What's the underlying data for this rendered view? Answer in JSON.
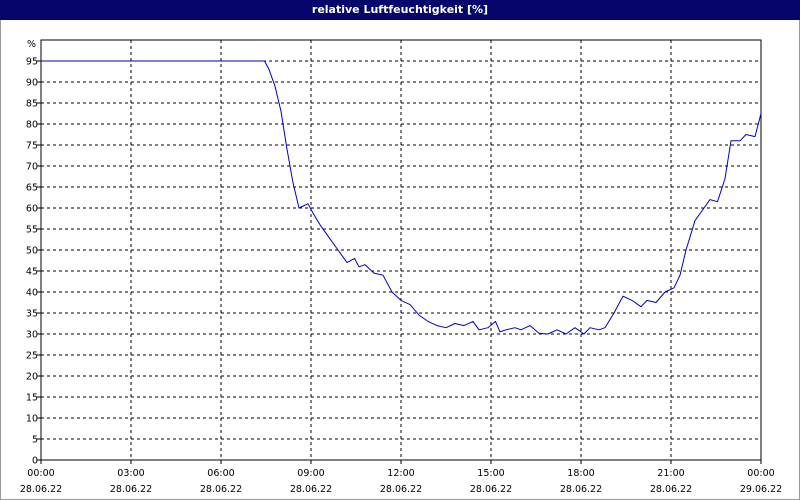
{
  "window": {
    "title": "relative Luftfeuchtigkeit [%]"
  },
  "chart_data": {
    "type": "line",
    "title": "relative Luftfeuchtigkeit [%]",
    "ylabel": "%",
    "xlabel": "",
    "ylim": [
      0,
      100
    ],
    "xlim_hours": [
      0,
      24
    ],
    "y_ticks": [
      0,
      5,
      10,
      15,
      20,
      25,
      30,
      35,
      40,
      45,
      50,
      55,
      60,
      65,
      70,
      75,
      80,
      85,
      90,
      95
    ],
    "x_ticks": [
      {
        "hour": 0,
        "time": "00:00",
        "date": "28.06.22"
      },
      {
        "hour": 3,
        "time": "03:00",
        "date": "28.06.22"
      },
      {
        "hour": 6,
        "time": "06:00",
        "date": "28.06.22"
      },
      {
        "hour": 9,
        "time": "09:00",
        "date": "28.06.22"
      },
      {
        "hour": 12,
        "time": "12:00",
        "date": "28.06.22"
      },
      {
        "hour": 15,
        "time": "15:00",
        "date": "28.06.22"
      },
      {
        "hour": 18,
        "time": "18:00",
        "date": "28.06.22"
      },
      {
        "hour": 21,
        "time": "21:00",
        "date": "28.06.22"
      },
      {
        "hour": 24,
        "time": "00:00",
        "date": "29.06.22"
      }
    ],
    "grid": true,
    "line_color": "#0000c0",
    "series": [
      {
        "x": [
          0,
          7.45,
          7.6,
          7.8,
          8.0,
          8.2,
          8.4,
          8.6,
          8.9,
          9.05,
          9.3,
          9.6,
          9.9,
          10.2,
          10.45,
          10.6,
          10.8,
          11.1,
          11.4,
          11.7,
          12.0,
          12.3,
          12.6,
          12.9,
          13.2,
          13.5,
          13.8,
          14.1,
          14.4,
          14.6,
          14.9,
          15.15,
          15.3,
          15.5,
          15.8,
          16.0,
          16.3,
          16.6,
          16.9,
          17.2,
          17.5,
          17.8,
          18.1,
          18.3,
          18.6,
          18.8,
          19.1,
          19.4,
          19.7,
          20.0,
          20.2,
          20.5,
          20.8,
          21.1,
          21.3,
          21.5,
          21.8,
          22.1,
          22.3,
          22.55,
          22.8,
          23.0,
          23.3,
          23.5,
          23.8,
          24.0
        ],
        "y": [
          95,
          95,
          93,
          89,
          83,
          74,
          66,
          60,
          61,
          59,
          56,
          53,
          50,
          47,
          48,
          46,
          46.5,
          44.5,
          44,
          40,
          38,
          37,
          34.5,
          33,
          32,
          31.5,
          32.5,
          32,
          33,
          31,
          31.5,
          33,
          30.5,
          31,
          31.5,
          31,
          32,
          30.2,
          30,
          31,
          30,
          31.5,
          30,
          31.5,
          31,
          31.5,
          35,
          39,
          38,
          36.5,
          38,
          37.5,
          40,
          41,
          44,
          50,
          57,
          60,
          62,
          61.5,
          67,
          76,
          76,
          77.5,
          77,
          82.5
        ]
      }
    ]
  }
}
